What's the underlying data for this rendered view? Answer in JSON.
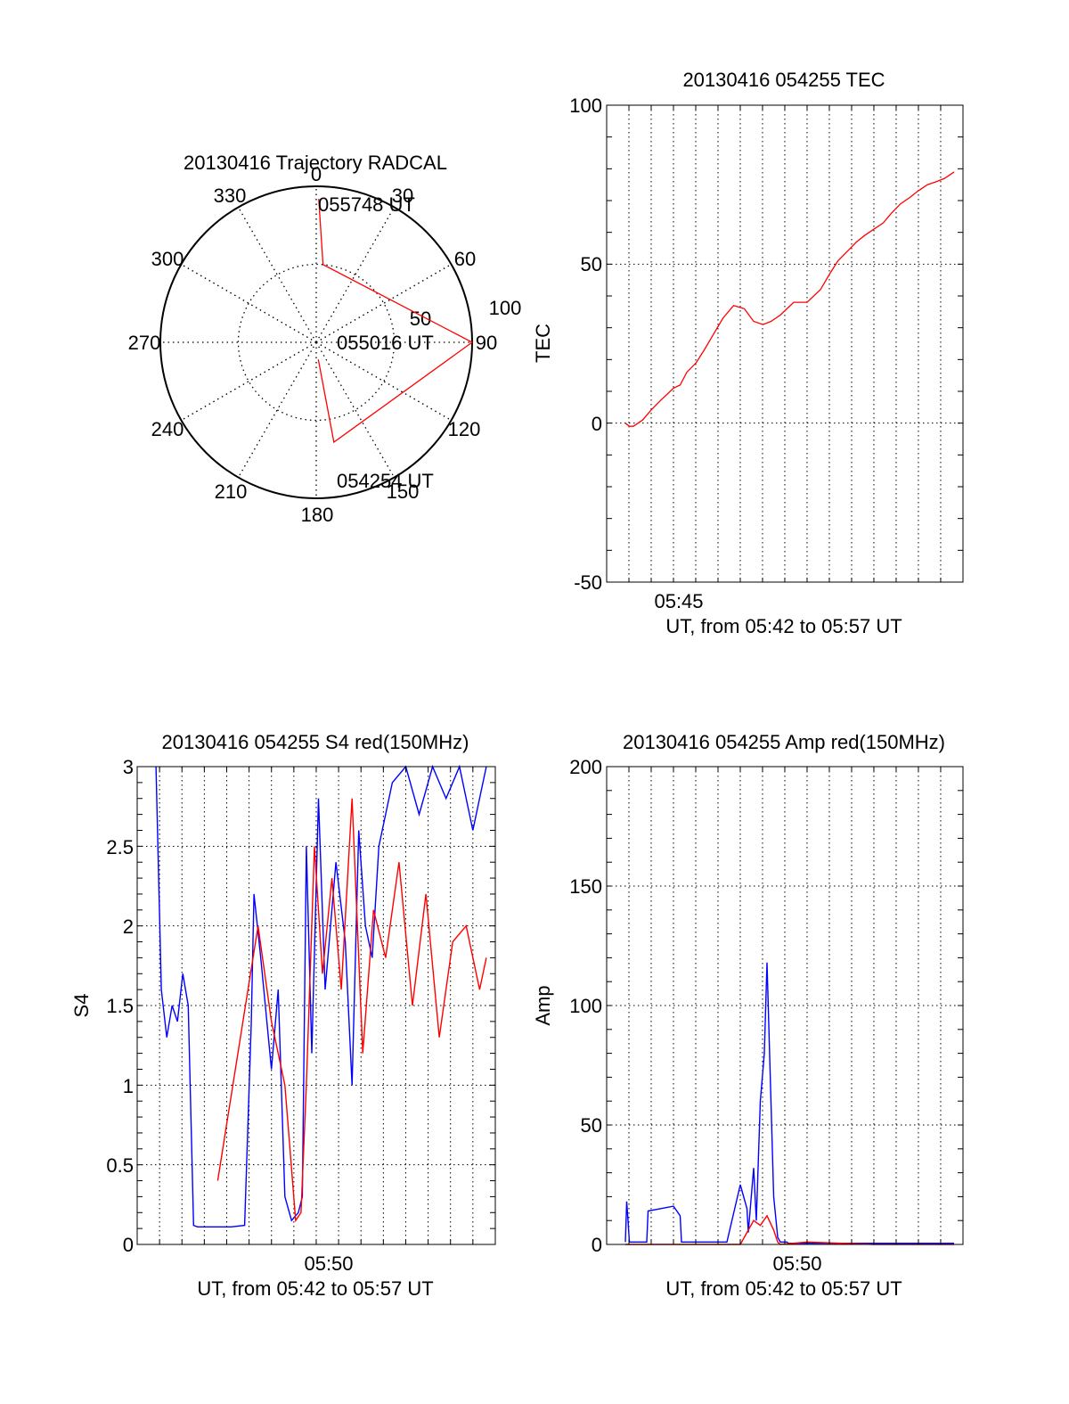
{
  "chart_data": [
    {
      "type": "polar-trajectory",
      "title": "20130416 Trajectory RADCAL",
      "azimuth_labels": [
        "0",
        "30",
        "60",
        "90",
        "120",
        "150",
        "180",
        "210",
        "240",
        "270",
        "300",
        "330"
      ],
      "radial_labels": [
        "50",
        "100"
      ],
      "elevation_max": 100,
      "color": "#ff0000",
      "time_labels": [
        "055748 UT",
        "055016 UT",
        "054254 UT"
      ],
      "track": [
        {
          "az": 1,
          "el": 8
        },
        {
          "az": 5,
          "el": 50
        },
        {
          "az": 90,
          "el": 0
        },
        {
          "az": 170,
          "el": 35
        },
        {
          "az": 173,
          "el": 89
        }
      ]
    },
    {
      "type": "line",
      "title": "20130416 054255 TEC",
      "ylabel": "TEC",
      "xlabel": "UT, from 05:42 to 05:57 UT",
      "ylim": [
        -50,
        100
      ],
      "yticks": [
        "-50",
        "0",
        "50",
        "100"
      ],
      "xtick_label": "05:45",
      "color": "#ff0000",
      "series": [
        {
          "x": [
            5.714,
            5.717,
            5.72,
            5.727,
            5.733,
            5.74,
            5.745,
            5.75,
            5.755,
            5.76,
            5.767,
            5.773,
            5.78,
            5.787,
            5.795,
            5.803,
            5.81,
            5.817,
            5.823,
            5.83,
            5.84,
            5.85,
            5.86,
            5.867,
            5.873,
            5.88,
            5.887,
            5.893,
            5.9,
            5.907,
            5.913,
            5.92,
            5.927,
            5.933,
            5.94,
            5.947,
            5.953,
            5.96
          ],
          "y": [
            0,
            -1,
            -1,
            1,
            4,
            7,
            9,
            11,
            12,
            16,
            19,
            23,
            28,
            33,
            37,
            36,
            32,
            31,
            32,
            34,
            38,
            38,
            42,
            47,
            51,
            54,
            57,
            59,
            61,
            63,
            66,
            69,
            71,
            73,
            75,
            76,
            77,
            79
          ]
        }
      ]
    },
    {
      "type": "line",
      "title": "20130416 054255 S4 red(150MHz)",
      "ylabel": "S4",
      "xlabel": "UT, from 05:42 to 05:57 UT",
      "ylim": [
        0,
        3
      ],
      "yticks": [
        "0",
        "0.5",
        "1",
        "1.5",
        "2",
        "2.5",
        "3"
      ],
      "xtick_label": "05:50",
      "series": [
        {
          "color": "#0000ff",
          "x": [
            5.714,
            5.718,
            5.722,
            5.726,
            5.73,
            5.734,
            5.738,
            5.742,
            5.745,
            5.752,
            5.76,
            5.77,
            5.78,
            5.785,
            5.787,
            5.792,
            5.8,
            5.805,
            5.81,
            5.815,
            5.82,
            5.823,
            5.826,
            5.83,
            5.835,
            5.84,
            5.848,
            5.855,
            5.86,
            5.865,
            5.87,
            5.875,
            5.88,
            5.89,
            5.9,
            5.91,
            5.92,
            5.93,
            5.94,
            5.95,
            5.96
          ],
          "y": [
            3,
            1.6,
            1.3,
            1.5,
            1.4,
            1.7,
            1.5,
            0.12,
            0.11,
            0.11,
            0.11,
            0.11,
            0.12,
            1.4,
            2.2,
            1.8,
            1.1,
            1.6,
            0.3,
            0.15,
            0.2,
            0.3,
            2.5,
            1.2,
            2.8,
            1.6,
            2.4,
            1.9,
            1.0,
            2.6,
            2.0,
            1.8,
            2.5,
            2.9,
            3,
            2.7,
            3,
            2.8,
            3,
            2.6,
            3
          ]
        },
        {
          "color": "#ff0000",
          "x": [
            5.76,
            5.79,
            5.8,
            5.81,
            5.818,
            5.822,
            5.826,
            5.832,
            5.838,
            5.845,
            5.852,
            5.86,
            5.868,
            5.876,
            5.885,
            5.895,
            5.905,
            5.915,
            5.925,
            5.935,
            5.945,
            5.955,
            5.96
          ],
          "y": [
            0.4,
            2.0,
            1.4,
            1.0,
            0.15,
            0.2,
            1.0,
            2.5,
            1.7,
            2.3,
            1.6,
            2.8,
            1.2,
            2.1,
            1.8,
            2.4,
            1.5,
            2.2,
            1.3,
            1.9,
            2.0,
            1.6,
            1.8
          ]
        }
      ]
    },
    {
      "type": "line",
      "title": "20130416 054255 Amp red(150MHz)",
      "ylabel": "Amp",
      "xlabel": "UT, from 05:42 to 05:57 UT",
      "ylim": [
        0,
        200
      ],
      "yticks": [
        "0",
        "50",
        "100",
        "150",
        "200"
      ],
      "xtick_label": "05:50",
      "series": [
        {
          "color": "#0000ff",
          "x": [
            5.714,
            5.715,
            5.716,
            5.717,
            5.725,
            5.73,
            5.731,
            5.75,
            5.755,
            5.756,
            5.757,
            5.79,
            5.8,
            5.805,
            5.806,
            5.81,
            5.812,
            5.815,
            5.818,
            5.82,
            5.825,
            5.828,
            5.83,
            5.835,
            5.836,
            5.84,
            5.85,
            5.9,
            5.96
          ],
          "y": [
            1,
            18,
            10,
            1,
            1,
            1,
            14,
            16,
            12,
            1,
            1,
            1,
            25,
            15,
            5,
            32,
            10,
            60,
            80,
            118,
            20,
            3,
            1,
            1,
            0.5,
            0.5,
            0.5,
            0.5,
            0.5
          ]
        },
        {
          "color": "#ff0000",
          "x": [
            5.714,
            5.76,
            5.79,
            5.8,
            5.805,
            5.81,
            5.815,
            5.82,
            5.825,
            5.828,
            5.83,
            5.85,
            5.9,
            5.96
          ],
          "y": [
            0,
            0,
            0,
            0,
            5,
            10,
            8,
            12,
            6,
            1,
            0,
            1,
            0,
            0
          ]
        }
      ]
    }
  ]
}
